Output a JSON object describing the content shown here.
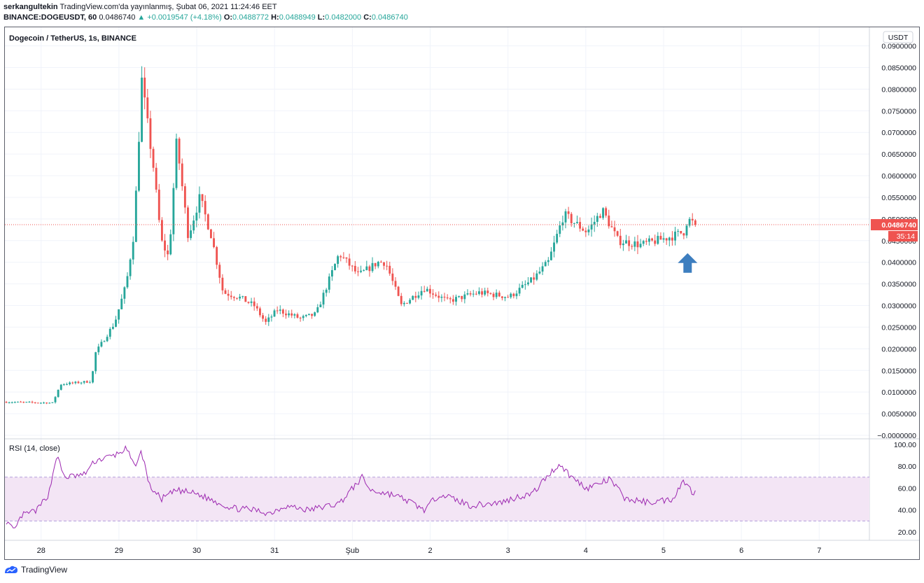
{
  "header": {
    "user": "serkangultekin",
    "published": "TradingView.com'da yayınlanmış, Şubat 06, 2021 11:24:46 EET",
    "symbol": "BINANCE:DOGEUSDT, 60",
    "last": "0.0486740",
    "change": "▲ +0.0019547 (+4.18%)",
    "o_label": "O:",
    "o_value": "0.0488772",
    "h_label": "H:",
    "h_value": "0.0488949",
    "l_label": "L:",
    "l_value": "0.0482000",
    "c_label": "C:",
    "c_value": "0.0486740"
  },
  "footer": {
    "brand": "TradingView"
  },
  "colors": {
    "up": "#26a69a",
    "down": "#ef5350",
    "rsi": "#9c27b0",
    "rsi_band": "#f3e5f5",
    "price_line": "#ef5350",
    "arrow": "#3d7ebf"
  },
  "chart_data": [
    {
      "type": "candlestick",
      "title": "Dogecoin / TetherUS, 1s, BINANCE",
      "currency_badge": "USDT",
      "price_label": "0.0486740",
      "countdown_label": "35:14",
      "last_price": 0.048674,
      "ylim": [
        0.0,
        0.093
      ],
      "y_ticks": [
        "0.0900000",
        "0.0850000",
        "0.0800000",
        "0.0750000",
        "0.0700000",
        "0.0650000",
        "0.0600000",
        "0.0550000",
        "0.0500000",
        "0.0450000",
        "0.0400000",
        "0.0350000",
        "0.0300000",
        "0.0250000",
        "0.0200000",
        "0.0150000",
        "0.0100000",
        "0.0050000",
        "−0.0000000"
      ],
      "x_ticks": [
        "28",
        "29",
        "30",
        "31",
        "Şub",
        "2",
        "3",
        "4",
        "5",
        "6",
        "7"
      ],
      "grid": true,
      "annotation": "up-arrow near latest candles",
      "anchors": [
        {
          "t": 0.0,
          "p": 0.0077
        },
        {
          "t": 0.06,
          "p": 0.0075
        },
        {
          "t": 0.07,
          "p": 0.0118
        },
        {
          "t": 0.11,
          "p": 0.0125
        },
        {
          "t": 0.115,
          "p": 0.019
        },
        {
          "t": 0.14,
          "p": 0.026
        },
        {
          "t": 0.155,
          "p": 0.035
        },
        {
          "t": 0.165,
          "p": 0.047
        },
        {
          "t": 0.175,
          "p": 0.082
        },
        {
          "t": 0.18,
          "p": 0.075
        },
        {
          "t": 0.19,
          "p": 0.062
        },
        {
          "t": 0.2,
          "p": 0.045
        },
        {
          "t": 0.21,
          "p": 0.041
        },
        {
          "t": 0.22,
          "p": 0.068
        },
        {
          "t": 0.235,
          "p": 0.046
        },
        {
          "t": 0.25,
          "p": 0.055
        },
        {
          "t": 0.265,
          "p": 0.046
        },
        {
          "t": 0.28,
          "p": 0.033
        },
        {
          "t": 0.3,
          "p": 0.032
        },
        {
          "t": 0.32,
          "p": 0.03
        },
        {
          "t": 0.335,
          "p": 0.026
        },
        {
          "t": 0.35,
          "p": 0.029
        },
        {
          "t": 0.38,
          "p": 0.027
        },
        {
          "t": 0.4,
          "p": 0.028
        },
        {
          "t": 0.43,
          "p": 0.042
        },
        {
          "t": 0.455,
          "p": 0.037
        },
        {
          "t": 0.48,
          "p": 0.04
        },
        {
          "t": 0.49,
          "p": 0.04
        },
        {
          "t": 0.51,
          "p": 0.03
        },
        {
          "t": 0.54,
          "p": 0.034
        },
        {
          "t": 0.57,
          "p": 0.031
        },
        {
          "t": 0.61,
          "p": 0.033
        },
        {
          "t": 0.65,
          "p": 0.032
        },
        {
          "t": 0.68,
          "p": 0.036
        },
        {
          "t": 0.7,
          "p": 0.04
        },
        {
          "t": 0.72,
          "p": 0.051
        },
        {
          "t": 0.735,
          "p": 0.049
        },
        {
          "t": 0.75,
          "p": 0.047
        },
        {
          "t": 0.77,
          "p": 0.052
        },
        {
          "t": 0.79,
          "p": 0.045
        },
        {
          "t": 0.82,
          "p": 0.044
        },
        {
          "t": 0.86,
          "p": 0.046
        },
        {
          "t": 0.875,
          "p": 0.047
        },
        {
          "t": 0.88,
          "p": 0.05
        },
        {
          "t": 0.89,
          "p": 0.0487
        }
      ]
    },
    {
      "type": "line",
      "title": "RSI (14, close)",
      "ylim": [
        13,
        105
      ],
      "y_ticks": [
        "100.00",
        "80.00",
        "60.00",
        "40.00",
        "20.00"
      ],
      "band": [
        30,
        70
      ],
      "anchors": [
        {
          "t": 0.0,
          "v": 30
        },
        {
          "t": 0.01,
          "v": 20
        },
        {
          "t": 0.02,
          "v": 35
        },
        {
          "t": 0.04,
          "v": 40
        },
        {
          "t": 0.055,
          "v": 55
        },
        {
          "t": 0.065,
          "v": 90
        },
        {
          "t": 0.075,
          "v": 70
        },
        {
          "t": 0.1,
          "v": 72
        },
        {
          "t": 0.115,
          "v": 85
        },
        {
          "t": 0.14,
          "v": 90
        },
        {
          "t": 0.155,
          "v": 96
        },
        {
          "t": 0.165,
          "v": 80
        },
        {
          "t": 0.175,
          "v": 93
        },
        {
          "t": 0.185,
          "v": 62
        },
        {
          "t": 0.2,
          "v": 50
        },
        {
          "t": 0.22,
          "v": 58
        },
        {
          "t": 0.245,
          "v": 55
        },
        {
          "t": 0.27,
          "v": 48
        },
        {
          "t": 0.29,
          "v": 42
        },
        {
          "t": 0.32,
          "v": 40
        },
        {
          "t": 0.34,
          "v": 37
        },
        {
          "t": 0.36,
          "v": 44
        },
        {
          "t": 0.39,
          "v": 40
        },
        {
          "t": 0.43,
          "v": 46
        },
        {
          "t": 0.46,
          "v": 70
        },
        {
          "t": 0.47,
          "v": 58
        },
        {
          "t": 0.5,
          "v": 54
        },
        {
          "t": 0.52,
          "v": 48
        },
        {
          "t": 0.54,
          "v": 40
        },
        {
          "t": 0.56,
          "v": 55
        },
        {
          "t": 0.6,
          "v": 44
        },
        {
          "t": 0.64,
          "v": 47
        },
        {
          "t": 0.66,
          "v": 52
        },
        {
          "t": 0.68,
          "v": 55
        },
        {
          "t": 0.7,
          "v": 72
        },
        {
          "t": 0.715,
          "v": 82
        },
        {
          "t": 0.73,
          "v": 70
        },
        {
          "t": 0.75,
          "v": 60
        },
        {
          "t": 0.78,
          "v": 68
        },
        {
          "t": 0.8,
          "v": 50
        },
        {
          "t": 0.83,
          "v": 47
        },
        {
          "t": 0.86,
          "v": 50
        },
        {
          "t": 0.875,
          "v": 67
        },
        {
          "t": 0.885,
          "v": 57
        },
        {
          "t": 0.89,
          "v": 56
        }
      ]
    }
  ]
}
